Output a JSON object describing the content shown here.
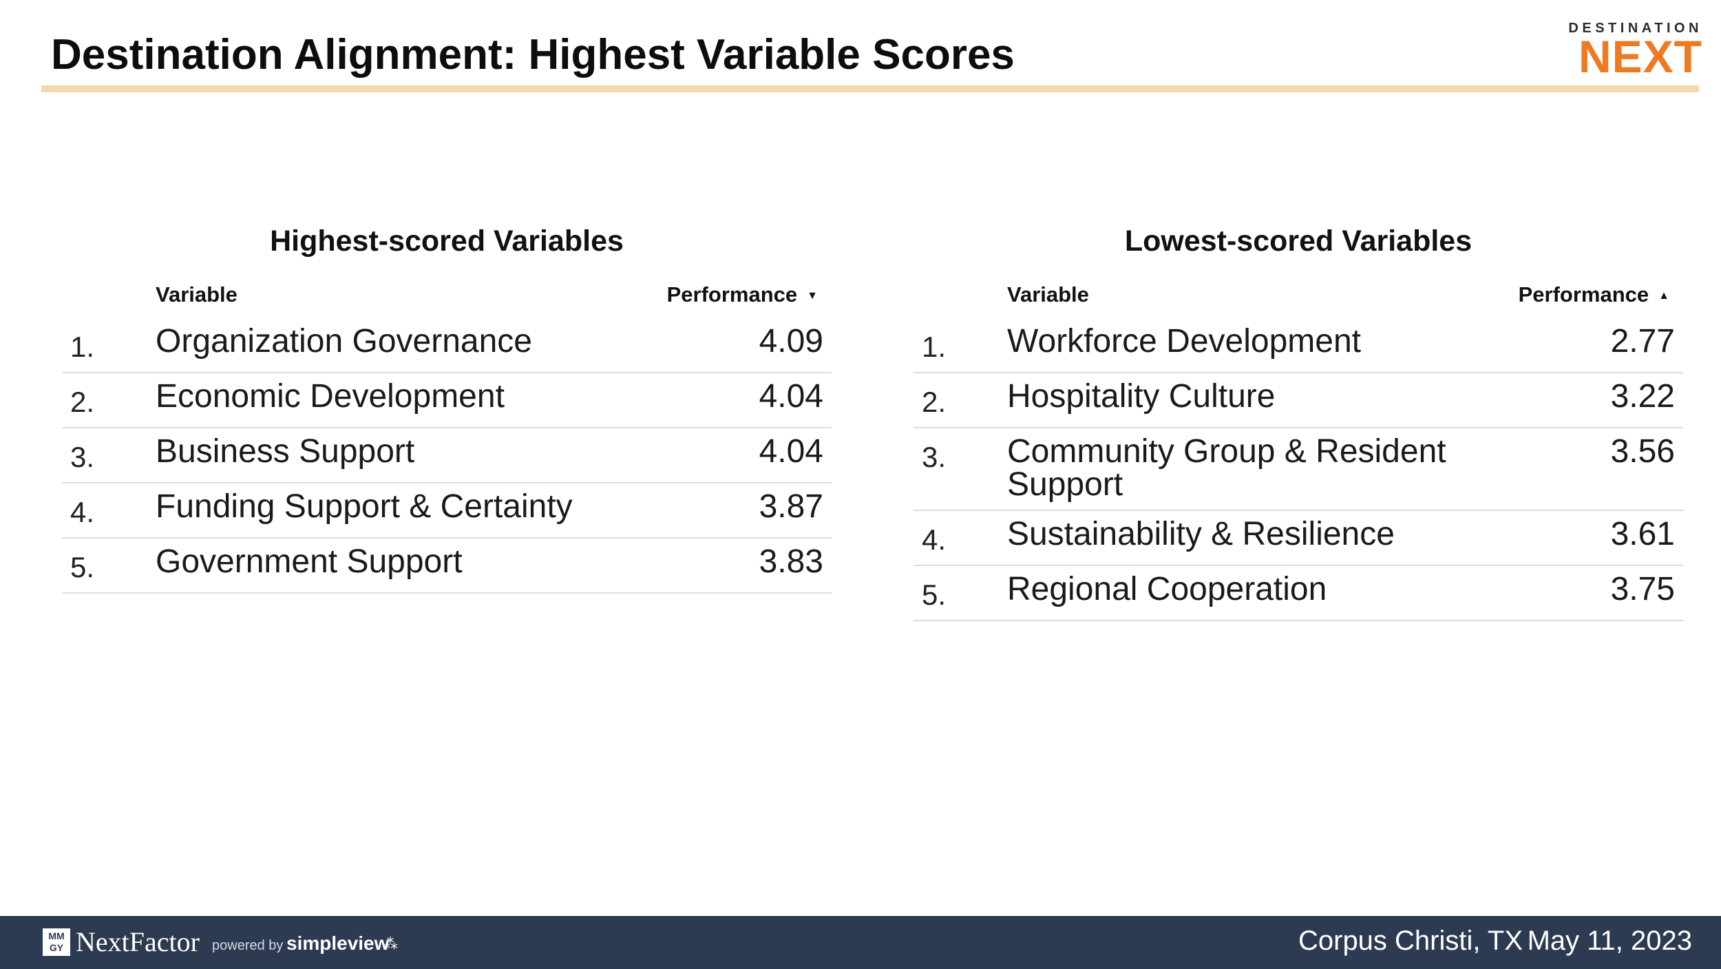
{
  "header": {
    "title": "Destination Alignment: Highest Variable Scores",
    "logo_top": "DESTINATION",
    "logo_main": "NEXT"
  },
  "highest": {
    "title": "Highest-scored Variables",
    "col_variable": "Variable",
    "col_performance": "Performance",
    "sort_direction": "descending",
    "rows": [
      {
        "rank": "1.",
        "name": "Organization Governance",
        "value": "4.09"
      },
      {
        "rank": "2.",
        "name": "Economic Development",
        "value": "4.04"
      },
      {
        "rank": "3.",
        "name": "Business Support",
        "value": "4.04"
      },
      {
        "rank": "4.",
        "name": "Funding Support & Certainty",
        "value": "3.87"
      },
      {
        "rank": "5.",
        "name": "Government Support",
        "value": "3.83"
      }
    ]
  },
  "lowest": {
    "title": "Lowest-scored Variables",
    "col_variable": "Variable",
    "col_performance": "Performance",
    "sort_direction": "ascending",
    "rows": [
      {
        "rank": "1.",
        "name": "Workforce Development",
        "value": "2.77"
      },
      {
        "rank": "2.",
        "name": "Hospitality Culture",
        "value": "3.22"
      },
      {
        "rank": "3.",
        "name": "Community Group & Resident Support",
        "value": "3.56"
      },
      {
        "rank": "4.",
        "name": "Sustainability & Resilience",
        "value": "3.61"
      },
      {
        "rank": "5.",
        "name": "Regional Cooperation",
        "value": "3.75"
      }
    ]
  },
  "footer": {
    "mmgy": "MM GY",
    "brand": "NextFactor",
    "powered_by": "powered by",
    "partner": "simpleview",
    "location": "Corpus Christi, TX",
    "date": "May 11, 2023"
  },
  "colors": {
    "accent_orange": "#ee7a22",
    "rule": "#f7d7b0",
    "footer_bg": "#2c3a52"
  }
}
